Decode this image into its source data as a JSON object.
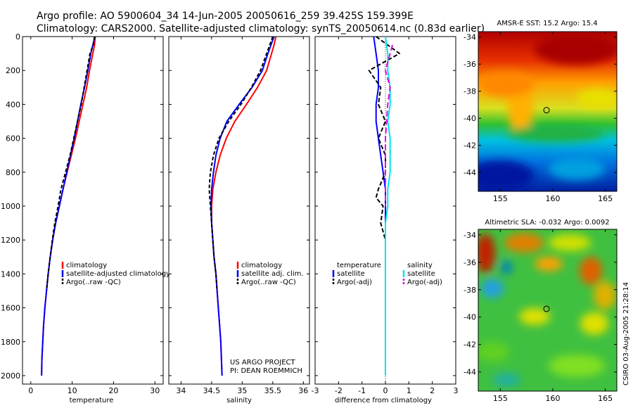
{
  "header": {
    "line1": "Argo profile: AO 5900604_34 14-Jun-2005 20050616_259 39.425S 159.399E",
    "line2": "Climatology: CARS2000. Satellite-adjusted climatology: synTS_20050614.nc (0.83d earlier)"
  },
  "credits": {
    "project": "US ARGO PROJECT",
    "pi": "PI: DEAN ROEMMICH",
    "stamp": "CSIRO 03-Aug-2005 21:28:14"
  },
  "colors": {
    "climatology": "#ff0000",
    "satellite": "#0000ff",
    "argo": "#000000",
    "salinity_satellite": "#00e5e5",
    "salinity_argo": "#e500e5"
  },
  "chart_data": [
    {
      "id": "temperature",
      "type": "line",
      "xlabel": "temperature",
      "ylabel": "",
      "xlim": [
        -2,
        32
      ],
      "ylim": [
        2050,
        0
      ],
      "xticks": [
        0,
        10,
        20,
        30
      ],
      "yticks": [
        0,
        200,
        400,
        600,
        800,
        1000,
        1200,
        1400,
        1600,
        1800,
        2000
      ],
      "legend": [
        "climatology",
        "satellite-adjusted climatology",
        "Argo(..raw -QC)"
      ],
      "series": [
        {
          "name": "climatology",
          "color": "#ff0000",
          "dash": "",
          "points": [
            [
              15.6,
              0
            ],
            [
              15.4,
              50
            ],
            [
              15.0,
              100
            ],
            [
              14.2,
              200
            ],
            [
              13.5,
              300
            ],
            [
              12.6,
              400
            ],
            [
              11.7,
              500
            ],
            [
              10.8,
              600
            ],
            [
              9.8,
              700
            ],
            [
              8.8,
              800
            ],
            [
              7.8,
              900
            ],
            [
              6.9,
              1000
            ],
            [
              6.0,
              1100
            ],
            [
              5.3,
              1200
            ],
            [
              4.7,
              1300
            ],
            [
              4.2,
              1400
            ],
            [
              3.8,
              1500
            ],
            [
              3.4,
              1600
            ],
            [
              3.1,
              1700
            ],
            [
              2.9,
              1800
            ],
            [
              2.7,
              1900
            ],
            [
              2.6,
              2000
            ]
          ]
        },
        {
          "name": "satellite-adjusted climatology",
          "color": "#0000ff",
          "dash": "",
          "points": [
            [
              15.5,
              0
            ],
            [
              15.0,
              50
            ],
            [
              14.5,
              100
            ],
            [
              13.8,
              200
            ],
            [
              13.0,
              300
            ],
            [
              12.1,
              400
            ],
            [
              11.3,
              500
            ],
            [
              10.5,
              600
            ],
            [
              9.6,
              700
            ],
            [
              8.7,
              800
            ],
            [
              7.8,
              900
            ],
            [
              6.9,
              1000
            ],
            [
              6.0,
              1100
            ],
            [
              5.3,
              1200
            ],
            [
              4.7,
              1300
            ],
            [
              4.2,
              1400
            ],
            [
              3.8,
              1500
            ],
            [
              3.4,
              1600
            ],
            [
              3.1,
              1700
            ],
            [
              2.9,
              1800
            ],
            [
              2.7,
              1900
            ],
            [
              2.6,
              2000
            ]
          ]
        },
        {
          "name": "Argo(..raw -QC)",
          "color": "#000000",
          "dash": "5,3",
          "points": [
            [
              15.4,
              0
            ],
            [
              15.1,
              50
            ],
            [
              14.3,
              100
            ],
            [
              13.6,
              200
            ],
            [
              12.9,
              300
            ],
            [
              12.2,
              400
            ],
            [
              11.3,
              500
            ],
            [
              10.4,
              600
            ],
            [
              9.5,
              700
            ],
            [
              8.4,
              800
            ],
            [
              7.3,
              900
            ],
            [
              6.6,
              1000
            ],
            [
              5.8,
              1100
            ],
            [
              5.2,
              1200
            ],
            [
              4.7,
              1300
            ],
            [
              4.2,
              1400
            ],
            [
              3.8,
              1500
            ]
          ]
        }
      ]
    },
    {
      "id": "salinity",
      "type": "line",
      "xlabel": "salinity",
      "ylabel": "",
      "xlim": [
        33.8,
        36.1
      ],
      "ylim": [
        2050,
        0
      ],
      "xticks": [
        34,
        34.5,
        35,
        35.5,
        36
      ],
      "yticks": [
        0,
        200,
        400,
        600,
        800,
        1000,
        1200,
        1400,
        1600,
        1800,
        2000
      ],
      "legend": [
        "climatology",
        "satellite adj. clim.",
        "Argo(..raw -QC)"
      ],
      "series": [
        {
          "name": "climatology",
          "color": "#ff0000",
          "dash": "",
          "points": [
            [
              35.55,
              0
            ],
            [
              35.52,
              50
            ],
            [
              35.48,
              100
            ],
            [
              35.4,
              200
            ],
            [
              35.25,
              300
            ],
            [
              35.07,
              400
            ],
            [
              34.88,
              500
            ],
            [
              34.74,
              600
            ],
            [
              34.64,
              700
            ],
            [
              34.57,
              800
            ],
            [
              34.52,
              900
            ],
            [
              34.5,
              1000
            ],
            [
              34.5,
              1100
            ],
            [
              34.52,
              1200
            ],
            [
              34.54,
              1300
            ],
            [
              34.57,
              1400
            ],
            [
              34.59,
              1500
            ],
            [
              34.61,
              1600
            ],
            [
              34.63,
              1700
            ],
            [
              34.65,
              1800
            ],
            [
              34.66,
              1900
            ],
            [
              34.67,
              2000
            ]
          ]
        },
        {
          "name": "satellite adj. clim.",
          "color": "#0000ff",
          "dash": "",
          "points": [
            [
              35.52,
              0
            ],
            [
              35.47,
              50
            ],
            [
              35.42,
              100
            ],
            [
              35.33,
              200
            ],
            [
              35.16,
              300
            ],
            [
              34.95,
              400
            ],
            [
              34.75,
              500
            ],
            [
              34.64,
              600
            ],
            [
              34.57,
              700
            ],
            [
              34.53,
              800
            ],
            [
              34.5,
              900
            ],
            [
              34.49,
              1000
            ],
            [
              34.5,
              1100
            ],
            [
              34.52,
              1200
            ],
            [
              34.54,
              1300
            ],
            [
              34.57,
              1400
            ],
            [
              34.59,
              1500
            ],
            [
              34.61,
              1600
            ],
            [
              34.63,
              1700
            ],
            [
              34.65,
              1800
            ],
            [
              34.66,
              1900
            ],
            [
              34.67,
              2000
            ]
          ]
        },
        {
          "name": "Argo(..raw -QC)",
          "color": "#000000",
          "dash": "5,3",
          "points": [
            [
              35.5,
              0
            ],
            [
              35.45,
              50
            ],
            [
              35.4,
              100
            ],
            [
              35.3,
              200
            ],
            [
              35.15,
              300
            ],
            [
              34.98,
              400
            ],
            [
              34.78,
              500
            ],
            [
              34.62,
              600
            ],
            [
              34.53,
              700
            ],
            [
              34.48,
              800
            ],
            [
              34.46,
              900
            ],
            [
              34.48,
              1000
            ],
            [
              34.5,
              1100
            ],
            [
              34.52,
              1200
            ],
            [
              34.54,
              1300
            ],
            [
              34.57,
              1400
            ],
            [
              34.59,
              1500
            ]
          ]
        }
      ]
    },
    {
      "id": "difference",
      "type": "line",
      "xlabel": "difference from climatology",
      "ylabel": "",
      "xlim": [
        -3,
        3
      ],
      "ylim": [
        2050,
        0
      ],
      "xticks": [
        -3,
        -2,
        -1,
        0,
        1,
        2,
        3
      ],
      "yticks": [
        0,
        200,
        400,
        600,
        800,
        1000,
        1200,
        1400,
        1600,
        1800,
        2000
      ],
      "legend_left": [
        "temperature",
        "satellite",
        "Argo(-adj)"
      ],
      "legend_right": [
        "salinity",
        "satellite",
        "Argo(-adj)"
      ],
      "series": [
        {
          "name": "temperature satellite",
          "color": "#0000ff",
          "dash": "",
          "points": [
            [
              -0.5,
              0
            ],
            [
              -0.4,
              100
            ],
            [
              -0.3,
              200
            ],
            [
              -0.3,
              300
            ],
            [
              -0.4,
              400
            ],
            [
              -0.4,
              500
            ],
            [
              -0.3,
              600
            ],
            [
              -0.2,
              700
            ],
            [
              -0.1,
              800
            ],
            [
              0.0,
              900
            ],
            [
              0.0,
              1000
            ],
            [
              0.0,
              1200
            ],
            [
              0.0,
              1500
            ],
            [
              0.0,
              2000
            ]
          ]
        },
        {
          "name": "temperature Argo(-adj)",
          "color": "#000000",
          "dash": "6,3",
          "points": [
            [
              -0.4,
              0
            ],
            [
              0.6,
              100
            ],
            [
              -0.7,
              200
            ],
            [
              -0.2,
              300
            ],
            [
              -0.3,
              400
            ],
            [
              0.0,
              500
            ],
            [
              -0.3,
              600
            ],
            [
              0.0,
              700
            ],
            [
              0.0,
              800
            ],
            [
              -0.3,
              900
            ],
            [
              -0.4,
              950
            ],
            [
              -0.1,
              1000
            ],
            [
              -0.2,
              1100
            ],
            [
              0.0,
              1200
            ],
            [
              0.0,
              1500
            ]
          ]
        },
        {
          "name": "salinity satellite",
          "color": "#00e5e5",
          "dash": "",
          "points": [
            [
              0.0,
              0
            ],
            [
              0.1,
              100
            ],
            [
              0.1,
              200
            ],
            [
              0.2,
              300
            ],
            [
              0.2,
              400
            ],
            [
              0.1,
              500
            ],
            [
              0.2,
              600
            ],
            [
              0.2,
              700
            ],
            [
              0.2,
              800
            ],
            [
              0.1,
              900
            ],
            [
              0.1,
              1000
            ],
            [
              0.0,
              1100
            ],
            [
              0.0,
              1200
            ],
            [
              0.0,
              1500
            ],
            [
              0.0,
              2000
            ]
          ]
        },
        {
          "name": "salinity Argo(-adj)",
          "color": "#e500e5",
          "dash": "8,4",
          "points": [
            [
              0.3,
              50
            ],
            [
              0.2,
              100
            ],
            [
              0.0,
              200
            ],
            [
              0.2,
              300
            ],
            [
              0.1,
              400
            ],
            [
              0.0,
              600
            ],
            [
              0.0,
              800
            ],
            [
              0.0,
              1000
            ]
          ]
        }
      ]
    },
    {
      "id": "sst-map",
      "type": "heatmap",
      "title": "AMSR-E SST: 15.2  Argo: 15.4",
      "xlim": [
        152.9,
        166.1
      ],
      "ylim": [
        -45.4,
        -33.6
      ],
      "xticks": [
        155,
        160,
        165
      ],
      "yticks": [
        -34,
        -36,
        -38,
        -40,
        -42,
        -44
      ],
      "marker": {
        "lon": 159.4,
        "lat": -39.4
      }
    },
    {
      "id": "sla-map",
      "type": "heatmap",
      "title": "Altimetric SLA: -0.032  Argo: 0.0092",
      "xlim": [
        152.9,
        166.1
      ],
      "ylim": [
        -45.4,
        -33.6
      ],
      "xticks": [
        155,
        160,
        165
      ],
      "yticks": [
        -34,
        -36,
        -38,
        -40,
        -42,
        -44
      ],
      "marker": {
        "lon": 159.4,
        "lat": -39.4
      }
    }
  ]
}
